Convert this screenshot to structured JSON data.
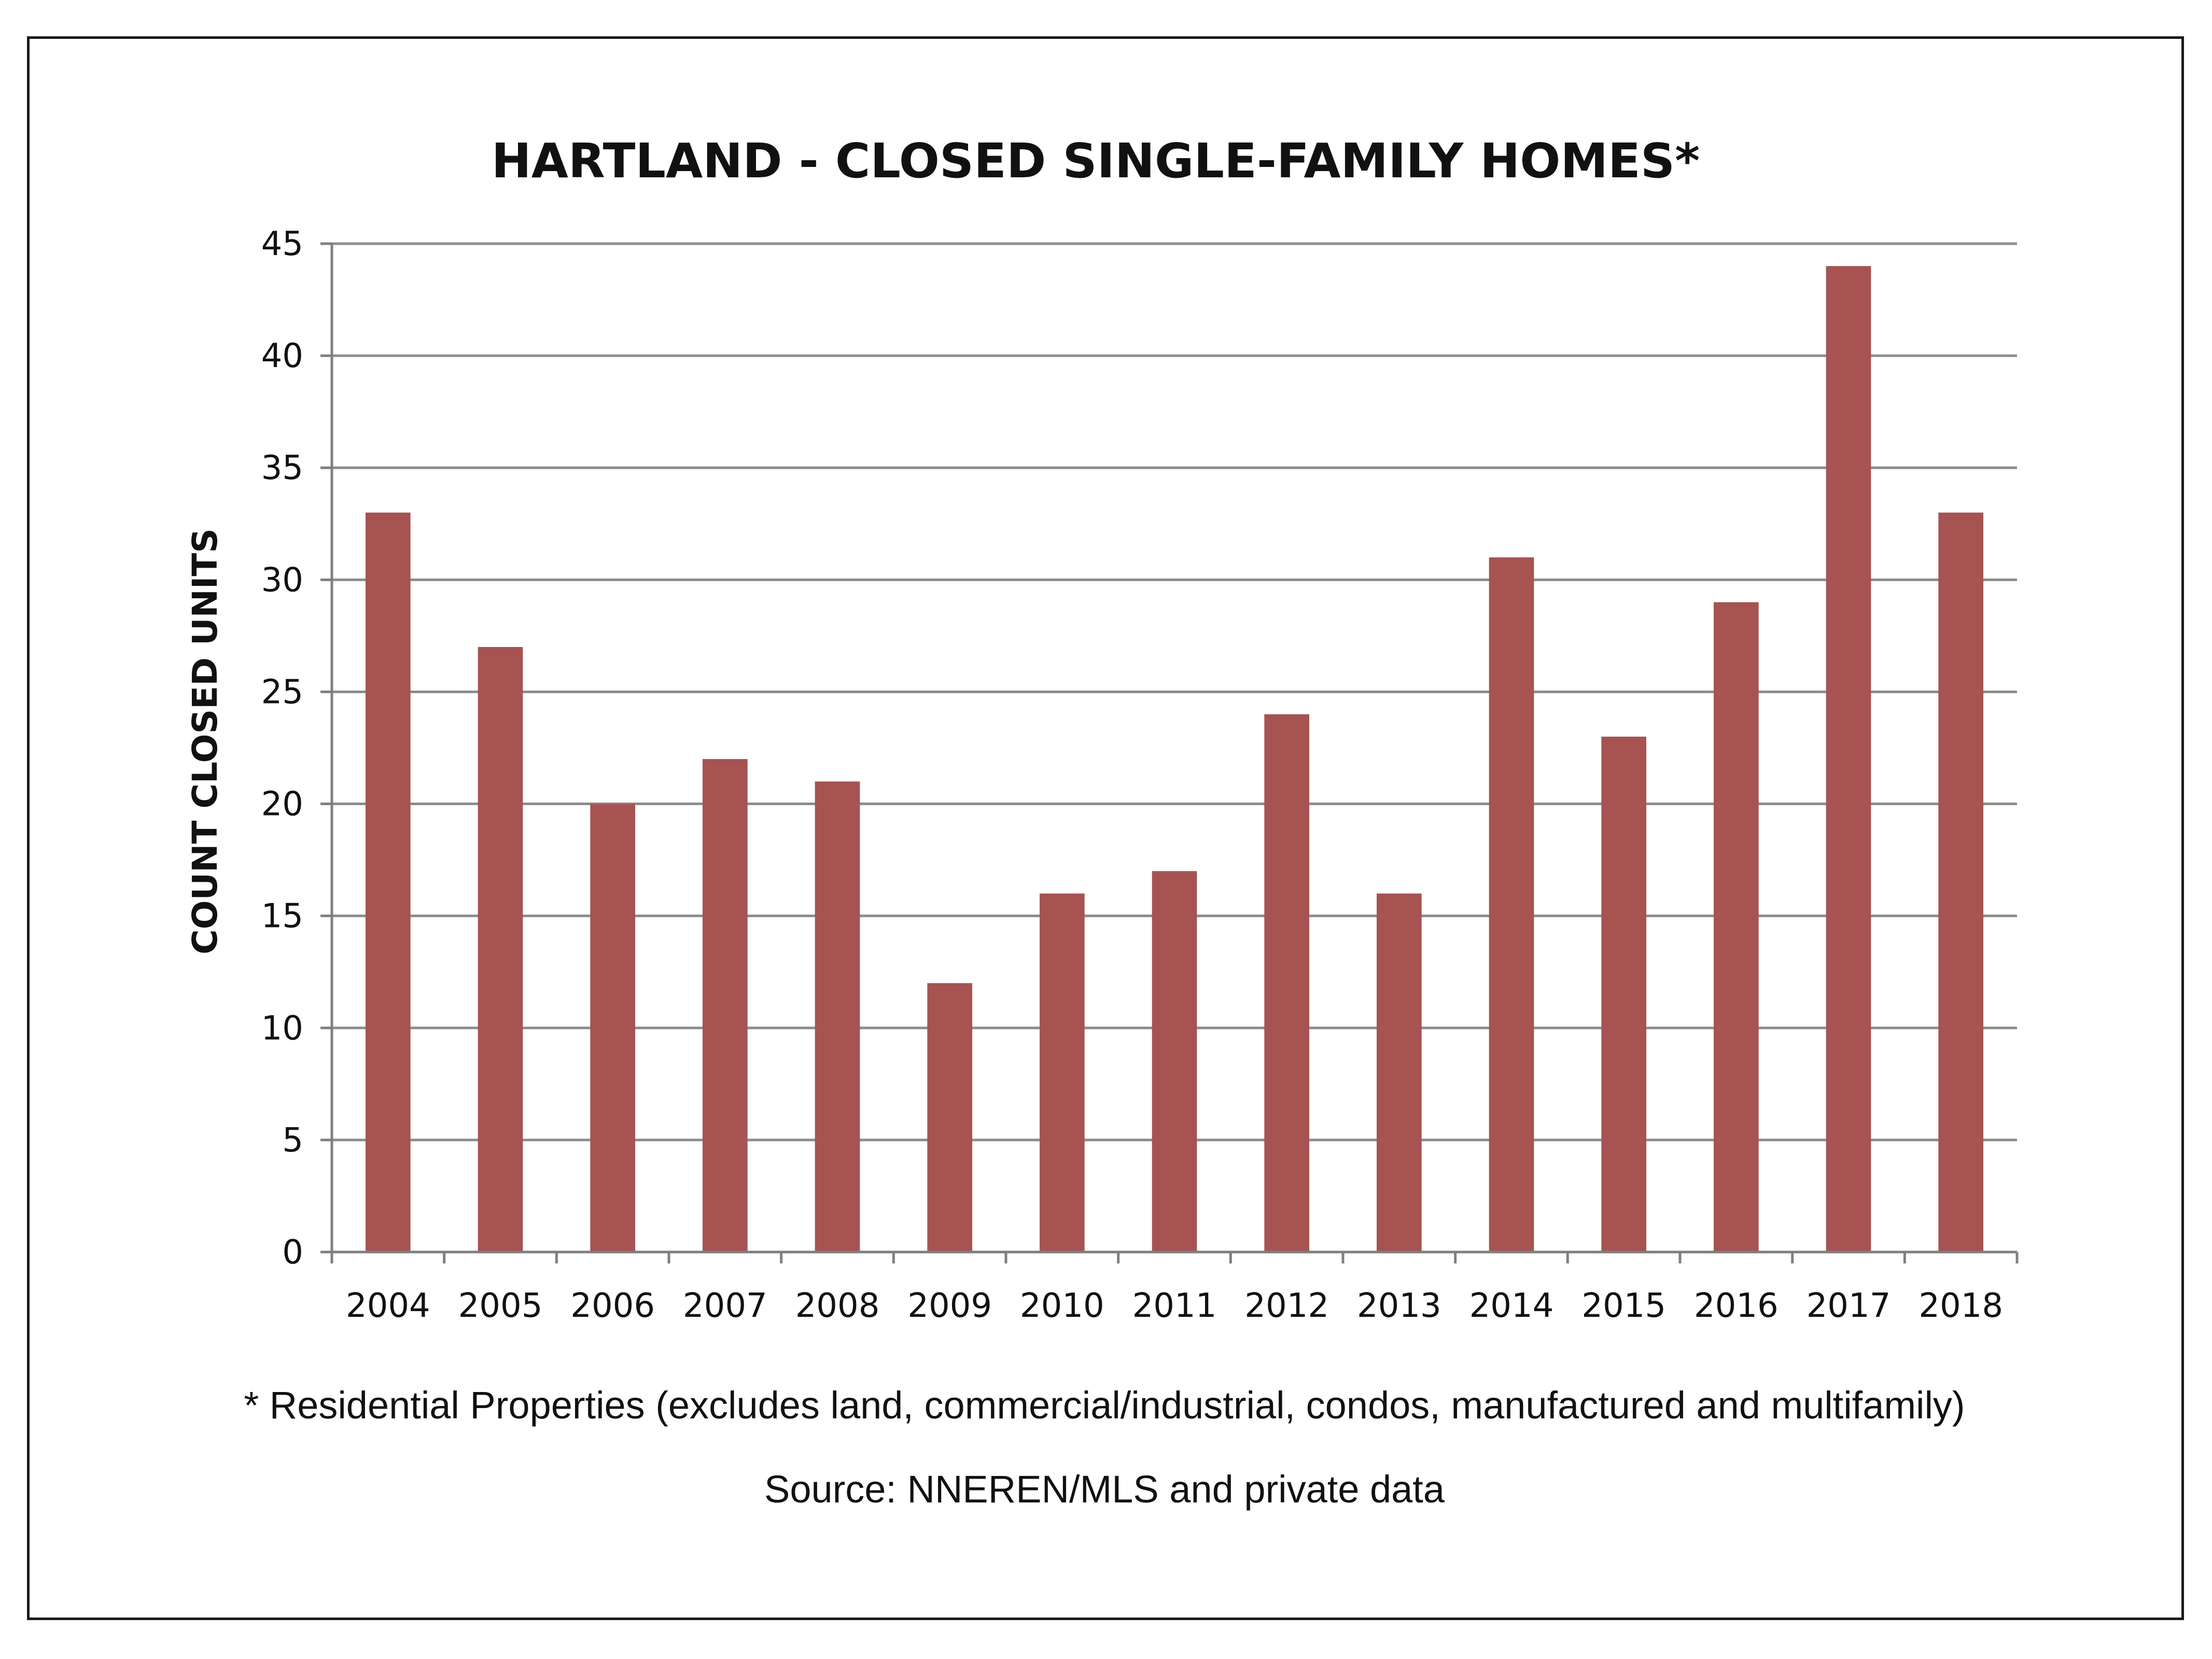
{
  "chart_data": {
    "type": "bar",
    "title": "HARTLAND - CLOSED SINGLE-FAMILY HOMES*",
    "ylabel": "COUNT CLOSED UNITS",
    "xlabel": "",
    "categories": [
      "2004",
      "2005",
      "2006",
      "2007",
      "2008",
      "2009",
      "2010",
      "2011",
      "2012",
      "2013",
      "2014",
      "2015",
      "2016",
      "2017",
      "2018"
    ],
    "values": [
      33,
      27,
      20,
      22,
      21,
      12,
      16,
      17,
      24,
      16,
      31,
      23,
      29,
      44,
      33
    ],
    "ylim": [
      0,
      45
    ],
    "yticks": [
      0,
      5,
      10,
      15,
      20,
      25,
      30,
      35,
      40,
      45
    ],
    "grid": true,
    "legend": "none",
    "colors": {
      "bar": "#a65352",
      "grid": "#8c8c8c",
      "axis": "#7f7f7f",
      "text": "#111111"
    }
  },
  "footnote": "* Residential Properties (excludes land, commercial/industrial, condos, manufactured and multifamily)",
  "source": "Source: NNEREN/MLS and private data"
}
